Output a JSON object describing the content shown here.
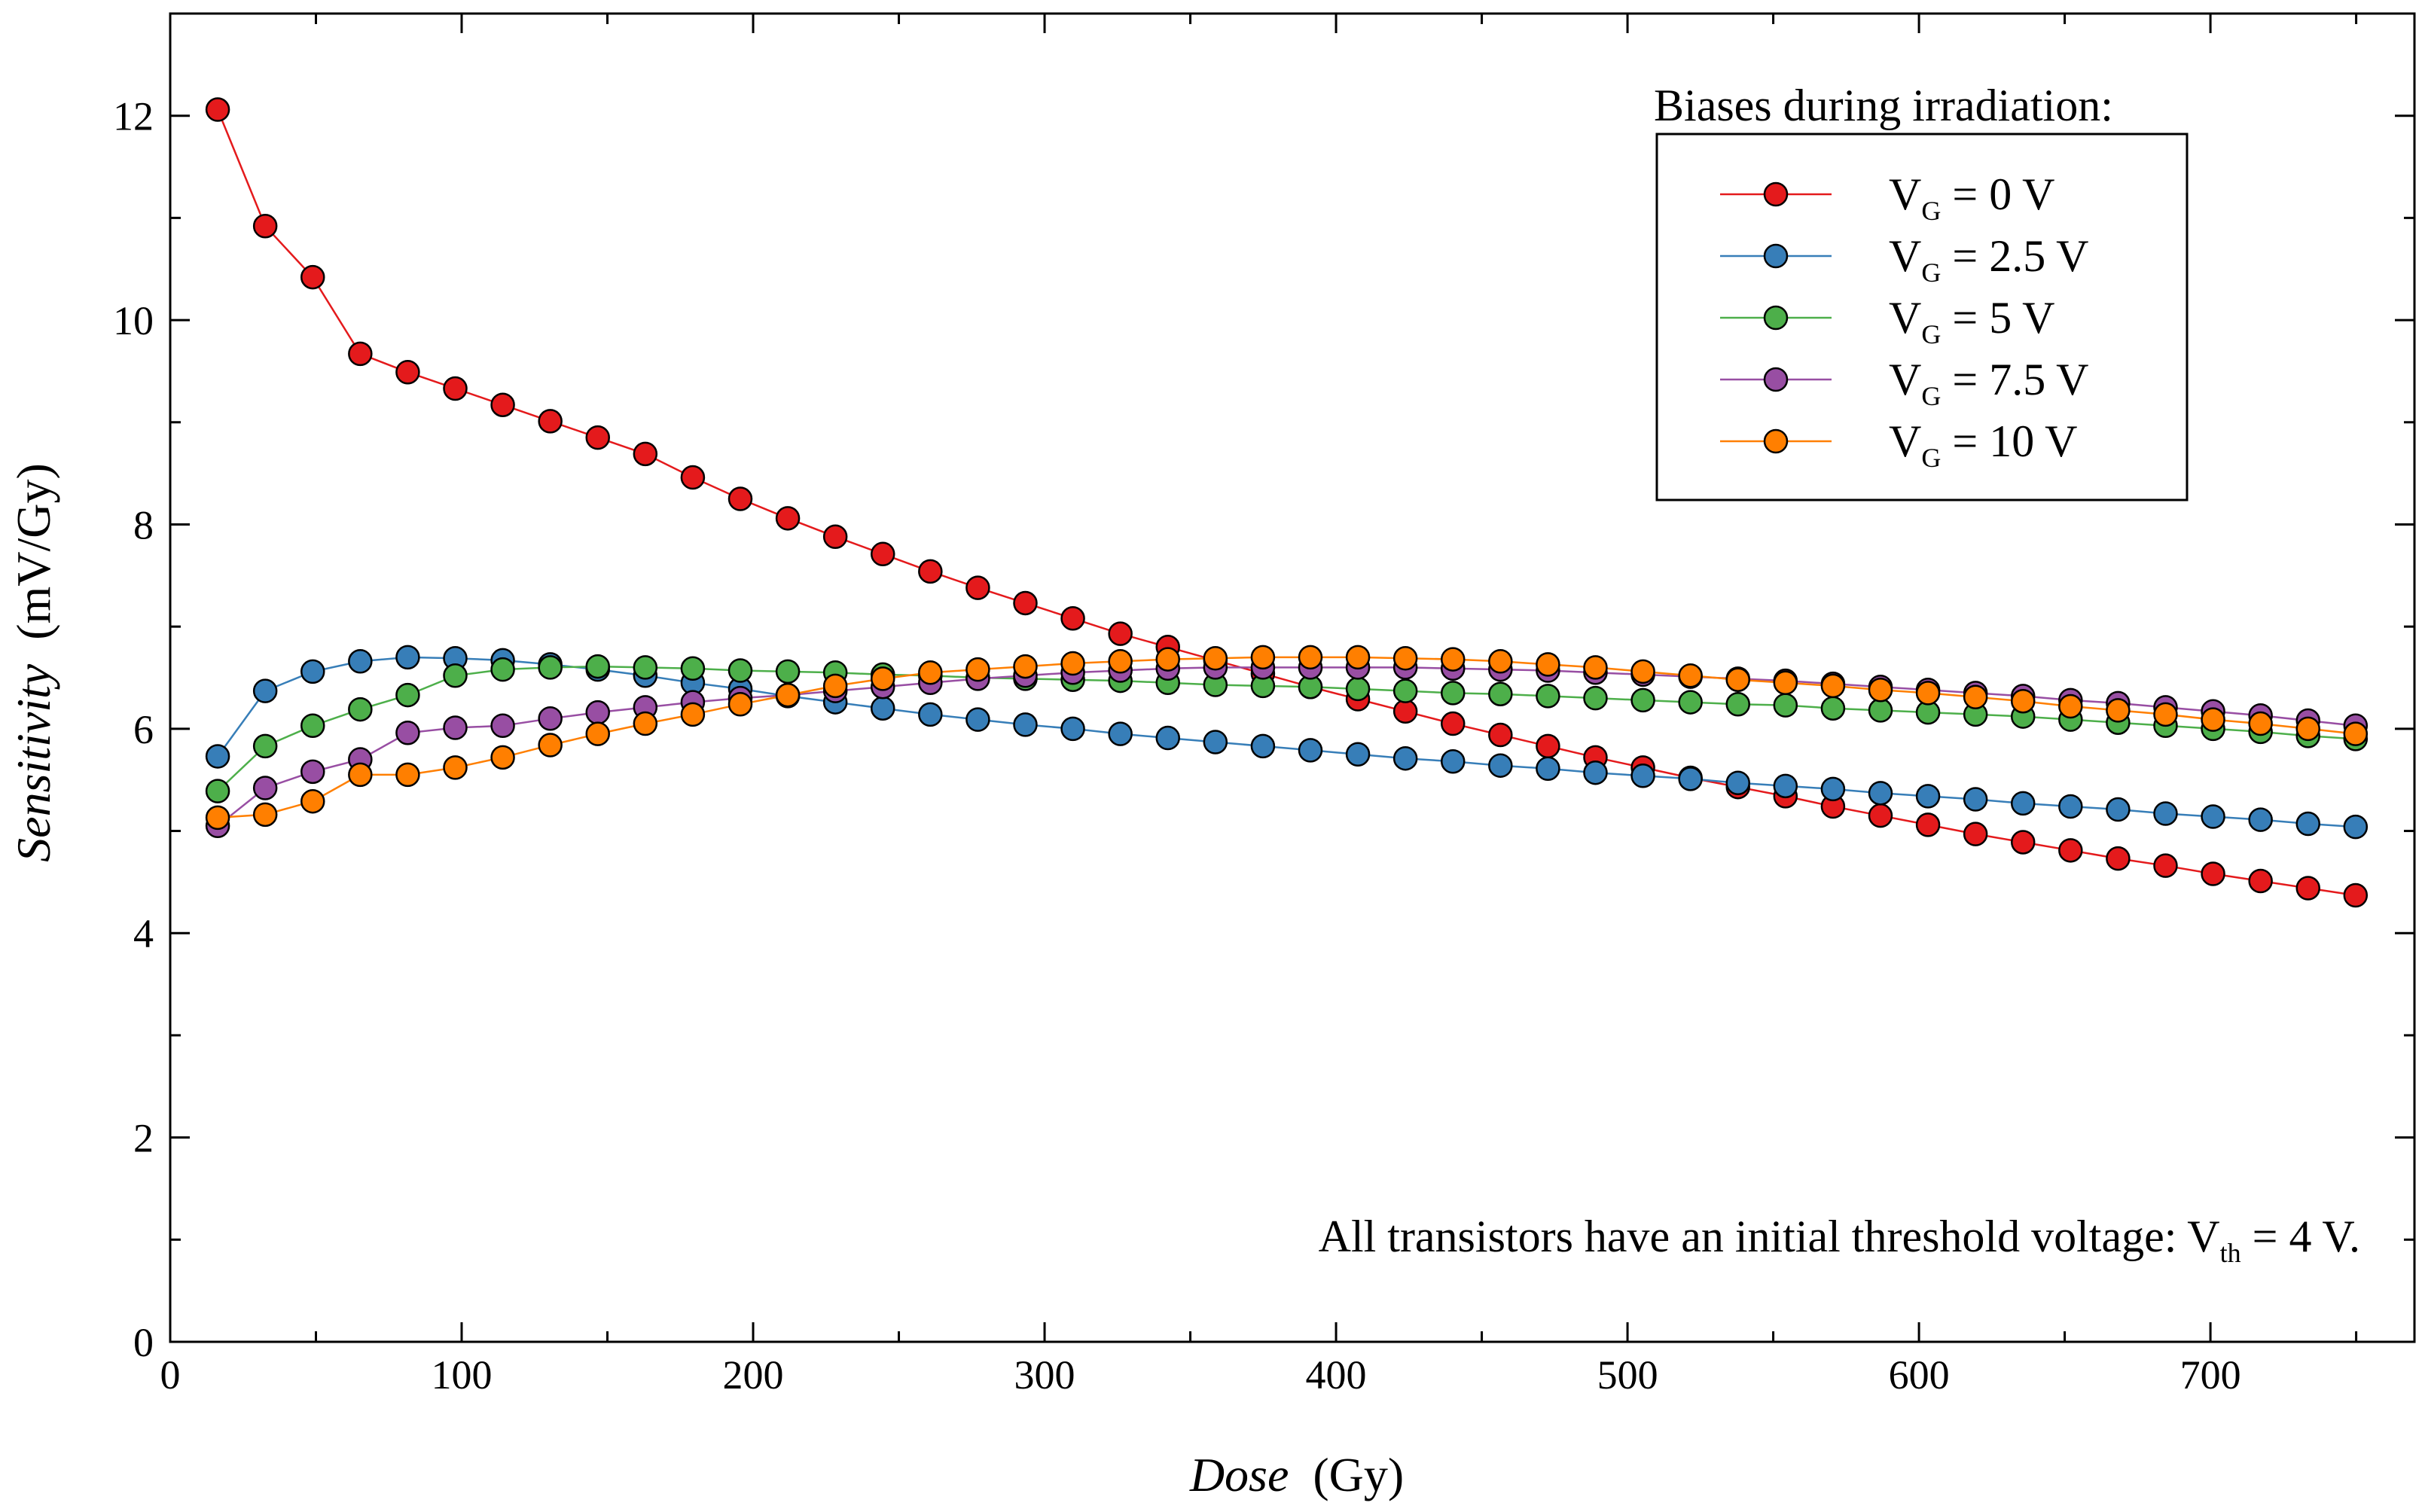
{
  "chart_data": {
    "type": "line",
    "title": "",
    "xlabel": {
      "name": "Dose",
      "unit": "(Gy)"
    },
    "ylabel": {
      "name": "Sensitivity",
      "unit": "(mV/Gy)"
    },
    "xlim": [
      0,
      770
    ],
    "ylim": [
      0,
      13
    ],
    "xticks": [
      0,
      100,
      200,
      300,
      400,
      500,
      600,
      700
    ],
    "yticks": [
      0,
      2,
      4,
      6,
      8,
      10,
      12
    ],
    "x": [
      16.3,
      32.6,
      48.9,
      65.2,
      81.5,
      97.8,
      114.1,
      130.4,
      146.7,
      163.0,
      179.3,
      195.6,
      211.9,
      228.2,
      244.5,
      260.8,
      277.1,
      293.4,
      309.7,
      326.0,
      342.3,
      358.6,
      374.9,
      391.2,
      407.5,
      423.8,
      440.1,
      456.4,
      472.7,
      489.0,
      505.3,
      521.6,
      537.9,
      554.2,
      570.5,
      586.8,
      603.1,
      619.4,
      635.7,
      652.0,
      668.3,
      684.6,
      700.9,
      717.2,
      733.5,
      749.8
    ],
    "series": [
      {
        "name": "0",
        "color": "#e41a1c",
        "values": [
          12.06,
          10.92,
          10.42,
          9.67,
          9.49,
          9.33,
          9.17,
          9.01,
          8.85,
          8.69,
          8.46,
          8.25,
          8.06,
          7.88,
          7.71,
          7.54,
          7.38,
          7.23,
          7.08,
          6.93,
          6.8,
          6.67,
          6.54,
          6.41,
          6.29,
          6.17,
          6.05,
          5.94,
          5.83,
          5.72,
          5.62,
          5.52,
          5.43,
          5.34,
          5.24,
          5.15,
          5.06,
          4.97,
          4.89,
          4.81,
          4.73,
          4.66,
          4.58,
          4.51,
          4.44,
          4.37
        ]
      },
      {
        "name": "2.5",
        "color": "#377eb8",
        "values": [
          5.73,
          6.37,
          6.56,
          6.66,
          6.7,
          6.69,
          6.67,
          6.63,
          6.58,
          6.52,
          6.45,
          6.39,
          6.32,
          6.26,
          6.2,
          6.14,
          6.09,
          6.04,
          6.0,
          5.95,
          5.91,
          5.87,
          5.83,
          5.79,
          5.75,
          5.71,
          5.68,
          5.64,
          5.61,
          5.57,
          5.54,
          5.51,
          5.47,
          5.44,
          5.41,
          5.37,
          5.34,
          5.31,
          5.27,
          5.24,
          5.21,
          5.17,
          5.14,
          5.11,
          5.07,
          5.04
        ]
      },
      {
        "name": "5",
        "color": "#4daf4a",
        "values": [
          5.39,
          5.83,
          6.03,
          6.19,
          6.33,
          6.52,
          6.58,
          6.6,
          6.61,
          6.6,
          6.59,
          6.57,
          6.56,
          6.55,
          6.53,
          6.52,
          6.5,
          6.49,
          6.48,
          6.47,
          6.45,
          6.43,
          6.42,
          6.41,
          6.39,
          6.37,
          6.35,
          6.34,
          6.32,
          6.3,
          6.28,
          6.26,
          6.24,
          6.23,
          6.2,
          6.18,
          6.16,
          6.14,
          6.12,
          6.09,
          6.06,
          6.03,
          6.0,
          5.97,
          5.93,
          5.9
        ]
      },
      {
        "name": "7.5",
        "color": "#984ea3",
        "values": [
          5.05,
          5.42,
          5.58,
          5.7,
          5.96,
          6.01,
          6.03,
          6.1,
          6.16,
          6.21,
          6.26,
          6.3,
          6.33,
          6.37,
          6.41,
          6.45,
          6.49,
          6.52,
          6.55,
          6.57,
          6.59,
          6.6,
          6.6,
          6.6,
          6.6,
          6.6,
          6.59,
          6.58,
          6.57,
          6.55,
          6.53,
          6.51,
          6.49,
          6.47,
          6.44,
          6.41,
          6.38,
          6.35,
          6.32,
          6.28,
          6.25,
          6.21,
          6.17,
          6.13,
          6.08,
          6.03
        ]
      },
      {
        "name": "10",
        "color": "#ff7f00",
        "values": [
          5.13,
          5.16,
          5.29,
          5.55,
          5.55,
          5.62,
          5.72,
          5.84,
          5.95,
          6.05,
          6.14,
          6.24,
          6.33,
          6.42,
          6.49,
          6.55,
          6.58,
          6.61,
          6.64,
          6.66,
          6.68,
          6.69,
          6.7,
          6.7,
          6.7,
          6.69,
          6.68,
          6.66,
          6.63,
          6.6,
          6.56,
          6.52,
          6.48,
          6.45,
          6.42,
          6.38,
          6.35,
          6.31,
          6.27,
          6.22,
          6.18,
          6.14,
          6.09,
          6.05,
          6.0,
          5.95
        ]
      }
    ],
    "legend": {
      "title": "Biases during irradiation:",
      "placement": "top-right",
      "symbol": "V",
      "subscript": "G",
      "unit": "V"
    },
    "annotation": {
      "text_before": "All transistors have an initial threshold voltage: V",
      "subscript": "th",
      "text_after": " = 4 V.",
      "placement": "bottom-right"
    }
  }
}
